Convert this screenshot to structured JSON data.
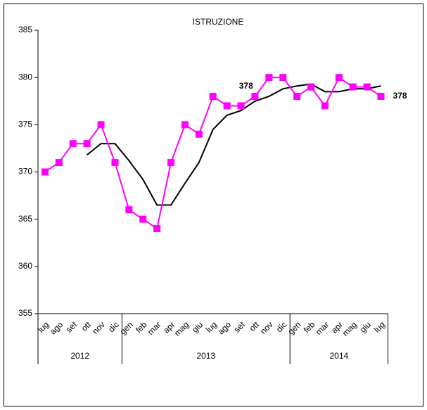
{
  "chart_data": {
    "type": "line",
    "title": "ISTRUZIONE",
    "categories": [
      "lug",
      "ago",
      "set",
      "ott",
      "nov",
      "dic",
      "gen",
      "feb",
      "mar",
      "apr",
      "mag",
      "giu",
      "lug",
      "ago",
      "set",
      "ott",
      "nov",
      "dic",
      "gen",
      "feb",
      "mar",
      "apr",
      "mag",
      "giu",
      "lug"
    ],
    "groups": [
      {
        "label": "2012",
        "count": 6
      },
      {
        "label": "2013",
        "count": 12
      },
      {
        "label": "2014",
        "count": 7
      }
    ],
    "series": [
      {
        "color": "#ff00ff",
        "marker": "square",
        "values": [
          370,
          371,
          373,
          373,
          375,
          371,
          366,
          365,
          364,
          371,
          375,
          374,
          378,
          377,
          377,
          378,
          380,
          380,
          378,
          379,
          377,
          380,
          379,
          379,
          378
        ],
        "value_labels": [
          null,
          null,
          null,
          null,
          null,
          null,
          null,
          null,
          null,
          null,
          null,
          null,
          "378",
          null,
          null,
          null,
          null,
          null,
          null,
          null,
          null,
          null,
          null,
          null,
          "378"
        ]
      },
      {
        "color": "#000000",
        "marker": "none",
        "values": [
          null,
          null,
          null,
          371.8,
          373,
          373,
          371.2,
          369.2,
          366.5,
          366.5,
          368.8,
          371,
          374.5,
          376,
          376.5,
          377.5,
          378,
          378.8,
          379.1,
          379.3,
          378.5,
          378.5,
          378.8,
          378.8,
          379.1
        ]
      }
    ],
    "ylim": [
      355,
      385
    ],
    "yticks": [
      355,
      360,
      365,
      370,
      375,
      380,
      385
    ],
    "grid": false
  }
}
